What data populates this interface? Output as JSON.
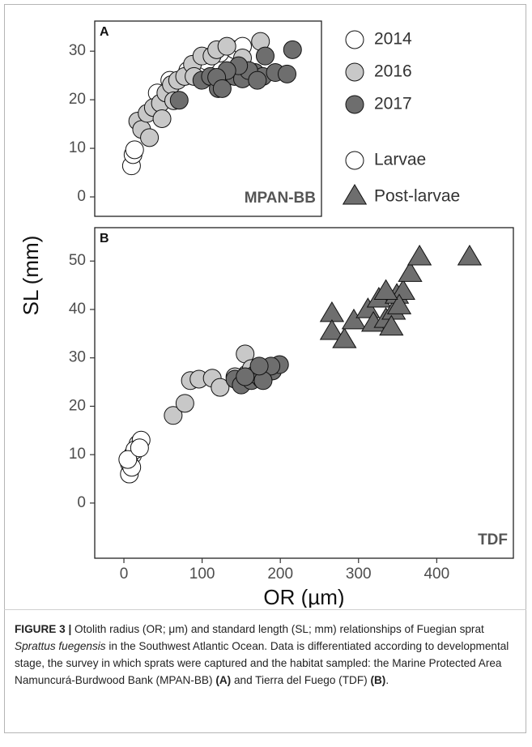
{
  "ylabel": "SL (mm)",
  "chart_data": [
    {
      "type": "scatter",
      "label": "A",
      "annotation": "MPAN-BB",
      "xlim": [
        -37,
        253
      ],
      "ylim": [
        -4,
        36.2
      ],
      "yticks": [
        0,
        10,
        20,
        30
      ],
      "series": [
        {
          "color": "#ffffff",
          "marker": "circle",
          "x": [
            10,
            12,
            14,
            59,
            82,
            106,
            123,
            142,
            152,
            43
          ],
          "y": [
            6.4,
            8.7,
            9.7,
            24,
            26,
            28,
            29.6,
            30.3,
            31,
            21.4
          ]
        },
        {
          "color": "#c8c8c8",
          "marker": "circle",
          "x": [
            18,
            23,
            33,
            30,
            38,
            47,
            54,
            61,
            69,
            78,
            88,
            100,
            113,
            119,
            132,
            175,
            152,
            64,
            90,
            49
          ],
          "y": [
            15.6,
            13.9,
            12.2,
            17.2,
            18.4,
            19.3,
            21.4,
            23.1,
            24,
            24.8,
            27.3,
            29,
            29,
            30.3,
            31,
            32,
            28.6,
            19.8,
            24.8,
            16.1
          ]
        },
        {
          "color": "#6e6e6e",
          "marker": "circle",
          "x": [
            71,
            100,
            111,
            126,
            121,
            142,
            152,
            168,
            178,
            194,
            209,
            216,
            181,
            160,
            147,
            132,
            171,
            119,
            126
          ],
          "y": [
            19.9,
            24,
            24.8,
            23.6,
            22.3,
            24.8,
            24.3,
            25.6,
            24.8,
            25.6,
            25.3,
            30.3,
            29,
            26,
            27,
            26,
            24,
            24.6,
            22.3
          ]
        }
      ]
    },
    {
      "type": "scatter",
      "label": "B",
      "annotation": "TDF",
      "xlabel": "OR (µm)",
      "xlim": [
        -37.3,
        498
      ],
      "ylim": [
        -11.4,
        56.9
      ],
      "xticks": [
        0,
        100,
        200,
        300,
        400
      ],
      "yticks": [
        0,
        10,
        20,
        30,
        40,
        50
      ],
      "series": [
        {
          "color": "#ffffff",
          "marker": "circle",
          "x": [
            7,
            11,
            18,
            22,
            7,
            14,
            10,
            5,
            20
          ],
          "y": [
            6,
            9.9,
            12.2,
            13,
            8.2,
            11,
            7.4,
            9,
            11.4
          ]
        },
        {
          "color": "#c8c8c8",
          "marker": "circle",
          "x": [
            63,
            78,
            85,
            96,
            113,
            123,
            157,
            155,
            163,
            142
          ],
          "y": [
            18.1,
            20.6,
            25.3,
            25.6,
            25.8,
            23.9,
            26.6,
            30.8,
            27.8,
            26.1
          ]
        },
        {
          "color": "#6e6e6e",
          "marker": "circle",
          "x": [
            142,
            150,
            163,
            176,
            181,
            190,
            199,
            188,
            168,
            178,
            155,
            173
          ],
          "y": [
            25.6,
            24.4,
            25.3,
            25.6,
            26.6,
            27.3,
            28.6,
            28.3,
            26.6,
            25.3,
            26.1,
            28.3
          ]
        },
        {
          "color": "#6e6e6e",
          "marker": "triangle",
          "x": [
            266,
            266,
            282,
            294,
            312,
            319,
            326,
            335,
            345,
            349,
            357,
            352,
            366,
            378,
            442,
            335,
            342
          ],
          "y": [
            39,
            35.3,
            33.6,
            37.5,
            39.8,
            37,
            42,
            37.8,
            39.5,
            42.8,
            43.6,
            40.6,
            47.3,
            50.7,
            50.7,
            43.6,
            36.2
          ]
        }
      ]
    }
  ],
  "legend": {
    "years": [
      {
        "name": "2014",
        "color": "#ffffff"
      },
      {
        "name": "2016",
        "color": "#c8c8c8"
      },
      {
        "name": "2017",
        "color": "#6e6e6e"
      }
    ],
    "stages": [
      {
        "name": "Larvae",
        "marker": "circle",
        "color": "#ffffff"
      },
      {
        "name": "Post-larvae",
        "marker": "triangle",
        "color": "#6e6e6e"
      }
    ]
  },
  "caption": [
    {
      "text": "FIGURE 3 |",
      "style": "bold"
    },
    {
      "text": " Otolith radius (OR; μm) and standard length (SL; mm) relationships of Fuegian sprat ",
      "style": "normal"
    },
    {
      "text": "Sprattus fuegensis",
      "style": "italic"
    },
    {
      "text": " in the Southwest Atlantic Ocean. Data is differentiated according to developmental stage, the survey in which sprats were captured and the habitat sampled: the Marine Protected Area Namuncurá-Burdwood Bank (MPAN-BB) ",
      "style": "normal"
    },
    {
      "text": "(A)",
      "style": "bold"
    },
    {
      "text": " and Tierra del Fuego (TDF) ",
      "style": "normal"
    },
    {
      "text": "(B)",
      "style": "bold"
    },
    {
      "text": ".",
      "style": "normal"
    }
  ]
}
